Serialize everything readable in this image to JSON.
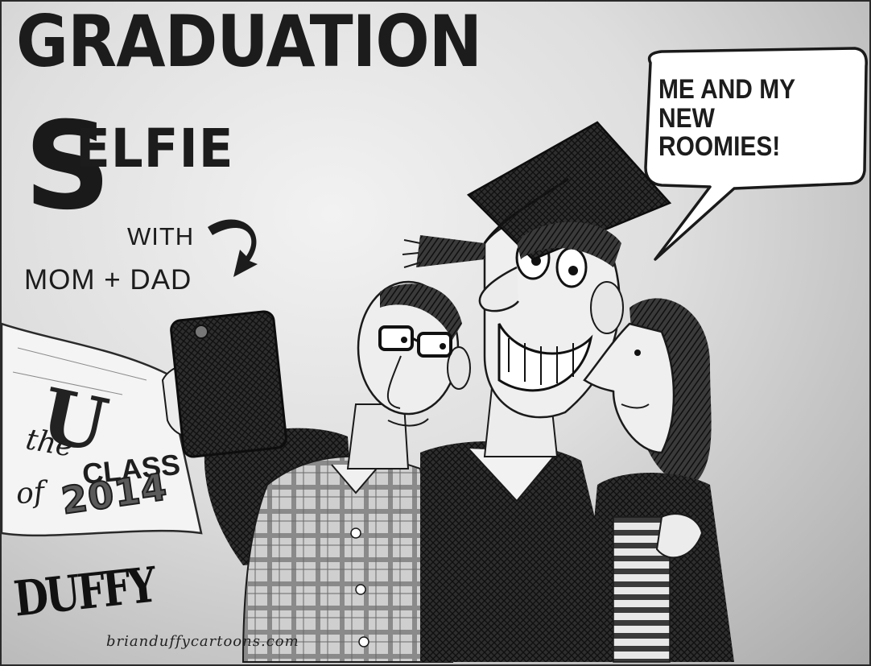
{
  "title": {
    "line1": "GRADUATION",
    "big_letter": "S",
    "line2_rest": "ELFIE",
    "with": "WITH",
    "mom_dad": "MOM + DAD"
  },
  "speech_bubble": {
    "lines": [
      "ME AND MY",
      "NEW ROOMIES!"
    ]
  },
  "banner": {
    "letter": "U",
    "the": "the",
    "class": "CLASS",
    "of": "of",
    "year": "2014"
  },
  "credit": {
    "signature": "DUFFY",
    "website": "brianduffycartoons.com"
  },
  "icons": {
    "arrow": "curved-arrow-icon",
    "phone": "smartphone-icon",
    "cap": "graduation-cap-icon"
  },
  "colors": {
    "ink": "#1c1c1c",
    "background": "#d6d6d6",
    "paper": "#ffffff"
  }
}
